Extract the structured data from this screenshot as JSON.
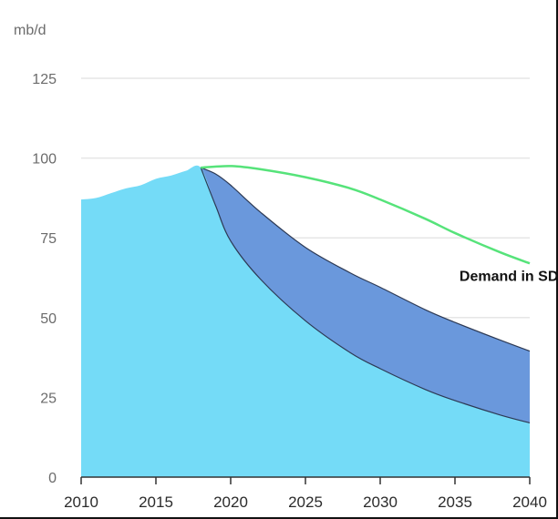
{
  "chart_data": {
    "type": "area",
    "title": "",
    "ylabel": "mb/d",
    "xlabel": "",
    "xlim": [
      2010,
      2040
    ],
    "ylim": [
      0,
      125
    ],
    "yticks": [
      0,
      25,
      50,
      75,
      100,
      125
    ],
    "xticks": [
      2010,
      2015,
      2020,
      2025,
      2030,
      2035,
      2040
    ],
    "grid": true,
    "colors": {
      "lower_area": "#74dbf7",
      "upper_band": "#6a98dc",
      "sds_line": "#56e37a",
      "outline": "#2d3a55",
      "grid": "#e6e6e6"
    },
    "series": [
      {
        "role": "lower-area",
        "x": [
          2010,
          2011,
          2012,
          2013,
          2014,
          2015,
          2016,
          2017,
          2018,
          2019,
          2020,
          2022,
          2025,
          2028,
          2030,
          2033,
          2035,
          2038,
          2040
        ],
        "values": [
          87,
          87.5,
          89,
          90.5,
          91.5,
          93.5,
          94.5,
          96,
          97,
          85,
          74,
          62,
          49,
          39,
          34,
          27.5,
          24,
          19.5,
          17
        ]
      },
      {
        "role": "upper-band",
        "x": [
          2018,
          2019,
          2020,
          2022,
          2025,
          2028,
          2030,
          2033,
          2035,
          2038,
          2040
        ],
        "values": [
          97,
          95,
          91.5,
          83,
          72,
          64,
          59.5,
          52.5,
          48.5,
          43,
          39.5
        ]
      },
      {
        "name": "Demand in SDS",
        "role": "line",
        "x": [
          2018,
          2020,
          2022,
          2025,
          2028,
          2030,
          2033,
          2035,
          2038,
          2040
        ],
        "values": [
          97,
          97.5,
          96.5,
          94,
          90.5,
          87,
          81,
          76.5,
          70.5,
          67
        ]
      }
    ],
    "annotations": [
      {
        "text": "Demand in SDS",
        "x": 2035.3,
        "y": 61.5
      }
    ]
  }
}
